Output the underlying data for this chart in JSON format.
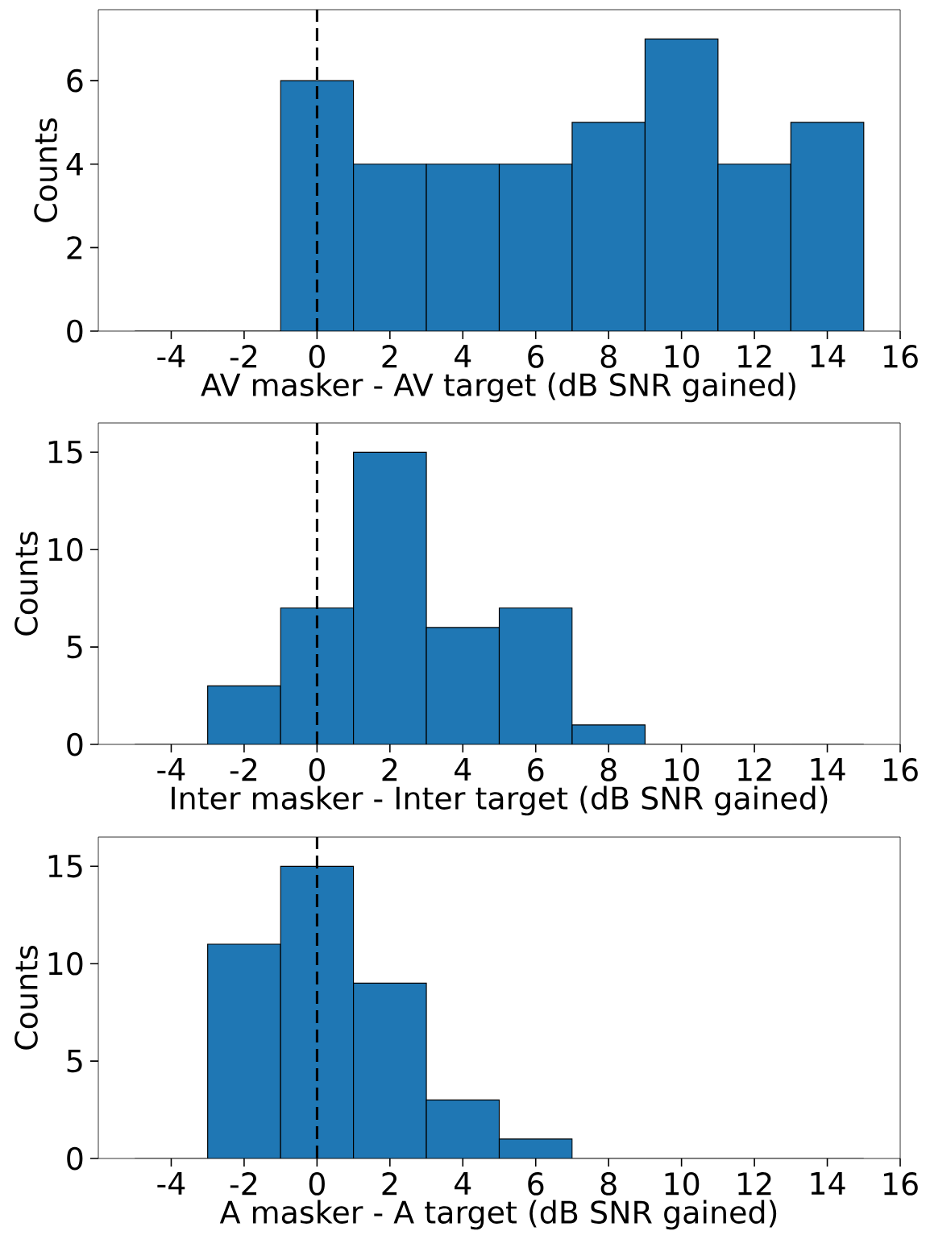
{
  "chart_data": [
    {
      "type": "histogram",
      "xlabel": "AV masker - AV target (dB SNR gained)",
      "ylabel": "Counts",
      "bins": [
        -5,
        -3,
        -1,
        1,
        3,
        5,
        7,
        9,
        11,
        13,
        15
      ],
      "values": [
        0,
        0,
        6,
        4,
        4,
        4,
        5,
        7,
        4,
        5
      ],
      "color": "#1f77b4",
      "xlim": [
        -6,
        16
      ],
      "ylim": [
        0,
        7.7
      ],
      "xticks": [
        -4,
        -2,
        0,
        2,
        4,
        6,
        8,
        10,
        12,
        14,
        16
      ],
      "yticks": [
        0,
        2,
        4,
        6
      ],
      "ref_lines": [
        {
          "axis": "x",
          "value": 0,
          "color": "#000000",
          "line_style": "dashed"
        }
      ]
    },
    {
      "type": "histogram",
      "xlabel": "Inter masker - Inter target (dB SNR gained)",
      "ylabel": "Counts",
      "bins": [
        -5,
        -3,
        -1,
        1,
        3,
        5,
        7,
        9,
        11,
        13,
        15
      ],
      "values": [
        0,
        3,
        7,
        15,
        6,
        7,
        1,
        0,
        0,
        0
      ],
      "color": "#1f77b4",
      "xlim": [
        -6,
        16
      ],
      "ylim": [
        0,
        16.5
      ],
      "xticks": [
        -4,
        -2,
        0,
        2,
        4,
        6,
        8,
        10,
        12,
        14,
        16
      ],
      "yticks": [
        0,
        5,
        10,
        15
      ],
      "ref_lines": [
        {
          "axis": "x",
          "value": 0,
          "color": "#000000",
          "line_style": "dashed"
        }
      ]
    },
    {
      "type": "histogram",
      "xlabel": "A masker - A target (dB SNR gained)",
      "ylabel": "Counts",
      "bins": [
        -5,
        -3,
        -1,
        1,
        3,
        5,
        7,
        9,
        11,
        13,
        15
      ],
      "values": [
        0,
        11,
        15,
        9,
        3,
        1,
        0,
        0,
        0,
        0
      ],
      "color": "#1f77b4",
      "xlim": [
        -6,
        16
      ],
      "ylim": [
        0,
        16.5
      ],
      "xticks": [
        -4,
        -2,
        0,
        2,
        4,
        6,
        8,
        10,
        12,
        14,
        16
      ],
      "yticks": [
        0,
        5,
        10,
        15
      ],
      "ref_lines": [
        {
          "axis": "x",
          "value": 0,
          "color": "#000000",
          "line_style": "dashed"
        }
      ]
    }
  ]
}
